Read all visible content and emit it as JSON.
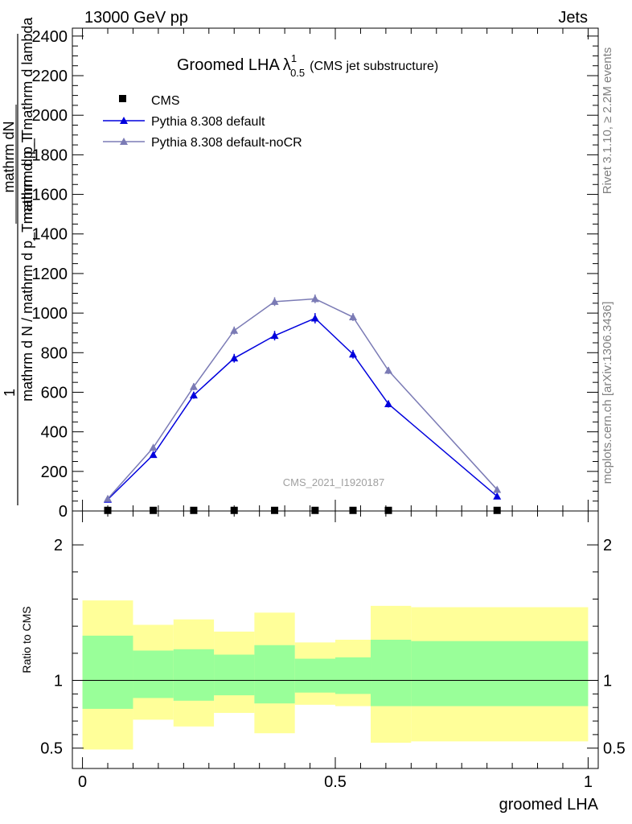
{
  "header": {
    "left": "13000 GeV pp",
    "right": "Jets"
  },
  "side_texts": {
    "rivet": "Rivet 3.1.10, ≥ 2.2M events",
    "mcplots": "mcplots.cern.ch [arXiv:1306.3436]"
  },
  "chart_data": [
    {
      "type": "line",
      "title": "Groomed LHA",
      "title_symbol": "λ",
      "title_superscript": "1",
      "title_subscript": "0.5",
      "title_suffix": "(CMS jet substructure)",
      "analysis_label": "CMS_2021_I1920187",
      "ylabel": {
        "prefix": "1",
        "frac1_num": "mathrm dN",
        "frac1_den": "mathrm d p_T mathrm d lambda",
        "frac2_num": "mathrm d N / mathrm d p_T mathrm d p_T",
        "frac2_den": "mathrm d p_T mathrm d lambda",
        "full": "mathrm d N / mathrm d p_T mathrm d p_T  1  mathrm dN / mathrm d p_T mathrm d lambda"
      },
      "ylim": [
        0,
        2440
      ],
      "xlim": [
        -0.02,
        1.02
      ],
      "yticks": [
        0,
        200,
        400,
        600,
        800,
        1000,
        1200,
        1400,
        1600,
        1800,
        2000,
        2200,
        2400
      ],
      "ytick_labels": [
        "0",
        "200",
        "400",
        "600",
        "800",
        "1000",
        "1200",
        "1400",
        "1600",
        "1800",
        "2000",
        "2200",
        "2400"
      ],
      "legend_position": "top-left",
      "series": [
        {
          "name": "CMS",
          "marker": "square",
          "color": "#000000",
          "x": [
            0.05,
            0.14,
            0.22,
            0.3,
            0.38,
            0.46,
            0.535,
            0.605,
            0.82
          ],
          "y": [
            1,
            1,
            1,
            1,
            1,
            1,
            1,
            1,
            1
          ],
          "yerr": [
            0,
            0,
            0,
            0,
            0,
            0,
            0,
            0,
            0
          ]
        },
        {
          "name": "Pythia 8.308 default",
          "marker": "triangle",
          "color": "#0000dd",
          "x": [
            0.05,
            0.14,
            0.22,
            0.3,
            0.38,
            0.46,
            0.535,
            0.605,
            0.82
          ],
          "y": [
            58,
            284,
            585,
            772,
            886,
            974,
            792,
            541,
            74
          ],
          "yerr": [
            5,
            12,
            18,
            22,
            24,
            26,
            22,
            18,
            8
          ]
        },
        {
          "name": "Pythia 8.308 default-noCR",
          "marker": "triangle",
          "color": "#7b7bb5",
          "x": [
            0.05,
            0.14,
            0.22,
            0.3,
            0.38,
            0.46,
            0.535,
            0.605,
            0.82
          ],
          "y": [
            62,
            320,
            628,
            912,
            1058,
            1072,
            980,
            710,
            108
          ],
          "yerr": [
            5,
            12,
            18,
            20,
            22,
            22,
            20,
            18,
            8
          ]
        }
      ]
    },
    {
      "type": "area",
      "ylabel": "Ratio to CMS",
      "xlabel": "groomed LHA",
      "ylim": [
        0.35,
        2.25
      ],
      "xlim": [
        -0.02,
        1.02
      ],
      "yticks": [
        0.5,
        1,
        2
      ],
      "ytick_labels": [
        "0.5",
        "1",
        "2"
      ],
      "xticks": [
        0,
        0.5,
        1
      ],
      "xtick_labels": [
        "0",
        "0.5",
        "1"
      ],
      "reference_line": 1,
      "bins": [
        [
          0.0,
          0.1
        ],
        [
          0.1,
          0.18
        ],
        [
          0.18,
          0.26
        ],
        [
          0.26,
          0.34
        ],
        [
          0.34,
          0.42
        ],
        [
          0.42,
          0.5
        ],
        [
          0.5,
          0.57
        ],
        [
          0.57,
          0.65
        ],
        [
          0.65,
          1.0
        ]
      ],
      "bands": [
        {
          "name": "total uncertainty",
          "color": "#ffff99",
          "lower": [
            0.49,
            0.71,
            0.66,
            0.76,
            0.61,
            0.82,
            0.81,
            0.54,
            0.55
          ],
          "upper": [
            1.59,
            1.41,
            1.45,
            1.36,
            1.5,
            1.28,
            1.3,
            1.55,
            1.54
          ]
        },
        {
          "name": "statistical uncertainty",
          "color": "#99ff99",
          "lower": [
            0.79,
            0.87,
            0.85,
            0.89,
            0.83,
            0.91,
            0.9,
            0.81,
            0.81
          ],
          "upper": [
            1.33,
            1.22,
            1.23,
            1.19,
            1.26,
            1.16,
            1.17,
            1.3,
            1.29
          ]
        }
      ]
    }
  ]
}
